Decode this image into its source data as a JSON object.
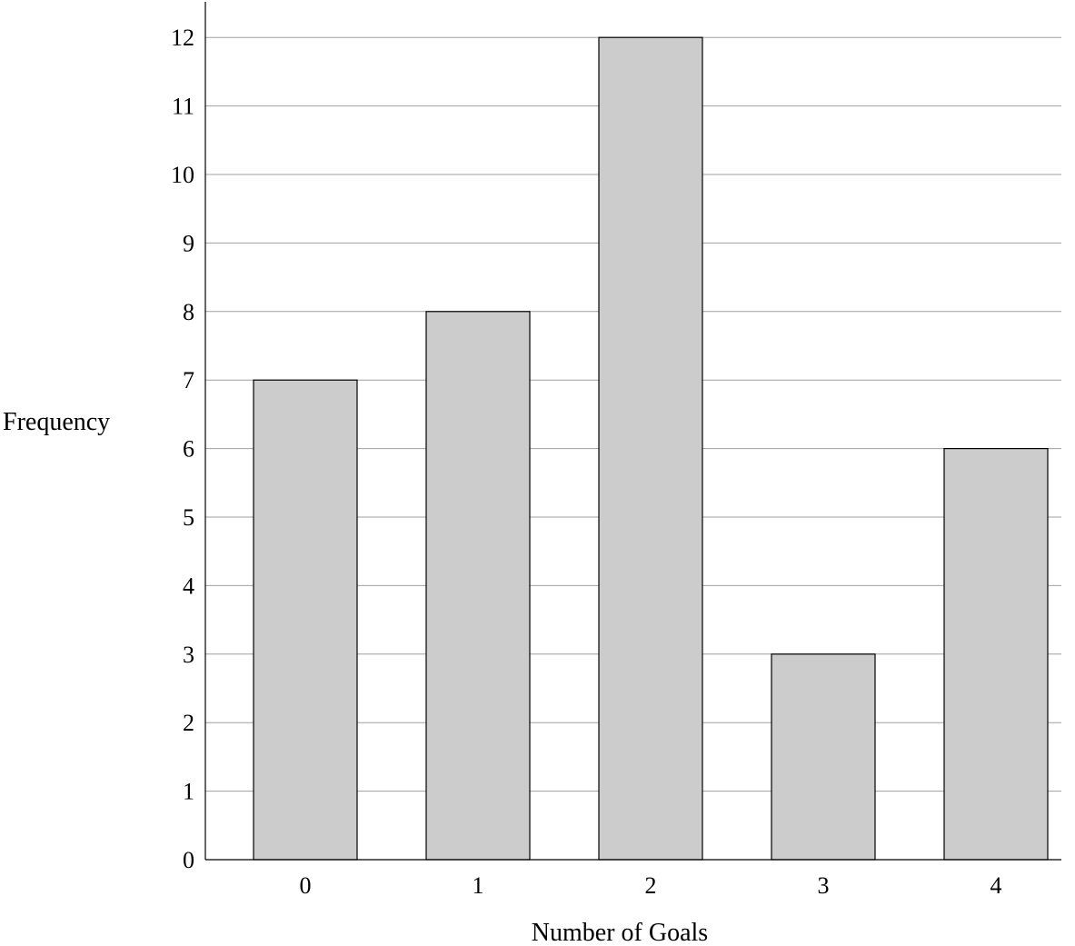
{
  "chart_data": {
    "type": "bar",
    "title": "",
    "xlabel": "Number of Goals",
    "ylabel": "Frequency",
    "categories": [
      "0",
      "1",
      "2",
      "3",
      "4"
    ],
    "values": [
      7,
      8,
      12,
      3,
      6
    ],
    "ylim": [
      0,
      12.5
    ],
    "yticks": [
      "0",
      "1",
      "2",
      "3",
      "4",
      "5",
      "6",
      "7",
      "8",
      "9",
      "10",
      "11",
      "12"
    ],
    "grid": true,
    "legend": "none",
    "colors": {
      "bar_fill": "#cccccc",
      "bar_stroke": "#000000",
      "grid": "#a0a0a0",
      "axis": "#000000"
    }
  }
}
